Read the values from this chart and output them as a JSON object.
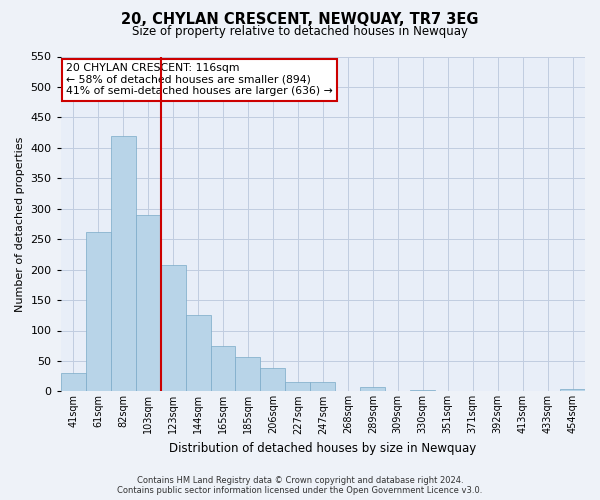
{
  "title": "20, CHYLAN CRESCENT, NEWQUAY, TR7 3EG",
  "subtitle": "Size of property relative to detached houses in Newquay",
  "xlabel": "Distribution of detached houses by size in Newquay",
  "ylabel": "Number of detached properties",
  "bar_labels": [
    "41sqm",
    "61sqm",
    "82sqm",
    "103sqm",
    "123sqm",
    "144sqm",
    "165sqm",
    "185sqm",
    "206sqm",
    "227sqm",
    "247sqm",
    "268sqm",
    "289sqm",
    "309sqm",
    "330sqm",
    "351sqm",
    "371sqm",
    "392sqm",
    "413sqm",
    "433sqm",
    "454sqm"
  ],
  "bar_values": [
    30,
    262,
    420,
    290,
    207,
    126,
    75,
    57,
    38,
    15,
    15,
    0,
    8,
    0,
    2,
    1,
    0,
    1,
    0,
    0,
    4
  ],
  "bar_color": "#b8d4e8",
  "bar_edge_color": "#7aaac8",
  "vline_color": "#cc0000",
  "vline_x_index": 4,
  "ylim": [
    0,
    550
  ],
  "yticks": [
    0,
    50,
    100,
    150,
    200,
    250,
    300,
    350,
    400,
    450,
    500,
    550
  ],
  "annotation_title": "20 CHYLAN CRESCENT: 116sqm",
  "annotation_line1": "← 58% of detached houses are smaller (894)",
  "annotation_line2": "41% of semi-detached houses are larger (636) →",
  "footer_line1": "Contains HM Land Registry data © Crown copyright and database right 2024.",
  "footer_line2": "Contains public sector information licensed under the Open Government Licence v3.0.",
  "background_color": "#eef2f8",
  "plot_bg_color": "#e8eef8",
  "grid_color": "#c0cce0"
}
